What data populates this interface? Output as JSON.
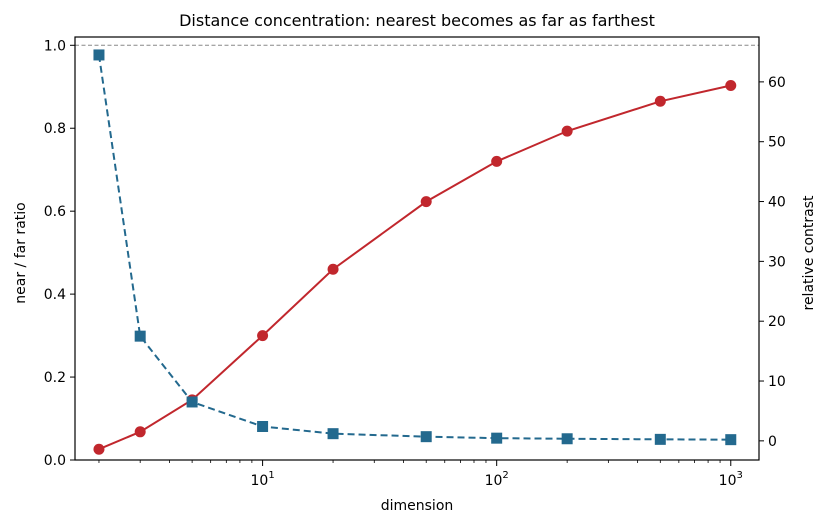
{
  "chart_data": {
    "type": "line",
    "title": "Distance concentration: nearest becomes as far as farthest",
    "xlabel": "dimension",
    "ylabel_left": "near / far ratio",
    "ylabel_right": "relative contrast",
    "xscale": "log",
    "xlim": [
      1.58,
      1320
    ],
    "ylim_left": [
      0.0,
      1.02
    ],
    "ylim_right": [
      -3.2,
      67.5
    ],
    "x_ticks": [
      {
        "value": 10,
        "base": "10",
        "exp": "1"
      },
      {
        "value": 100,
        "base": "10",
        "exp": "2"
      },
      {
        "value": 1000,
        "base": "10",
        "exp": "3"
      }
    ],
    "y_ticks_left": [
      "0.0",
      "0.2",
      "0.4",
      "0.6",
      "0.8",
      "1.0"
    ],
    "y_ticks_right": [
      "0",
      "10",
      "20",
      "30",
      "40",
      "50",
      "60"
    ],
    "reference_line": {
      "axis": "left",
      "y": 1.0,
      "style": "dashed",
      "color": "#888888"
    },
    "grid": false,
    "x": [
      2,
      3,
      5,
      10,
      20,
      50,
      100,
      200,
      500,
      1000
    ],
    "series": [
      {
        "axis": "left",
        "marker": "circle",
        "linestyle": "solid",
        "color": "#c1272d",
        "values": [
          0.026,
          0.068,
          0.145,
          0.3,
          0.46,
          0.623,
          0.72,
          0.793,
          0.865,
          0.903
        ]
      },
      {
        "axis": "right",
        "marker": "square",
        "linestyle": "dashed",
        "color": "#23698e",
        "values": [
          64.5,
          17.5,
          6.5,
          2.4,
          1.2,
          0.7,
          0.45,
          0.35,
          0.25,
          0.2
        ]
      }
    ]
  }
}
